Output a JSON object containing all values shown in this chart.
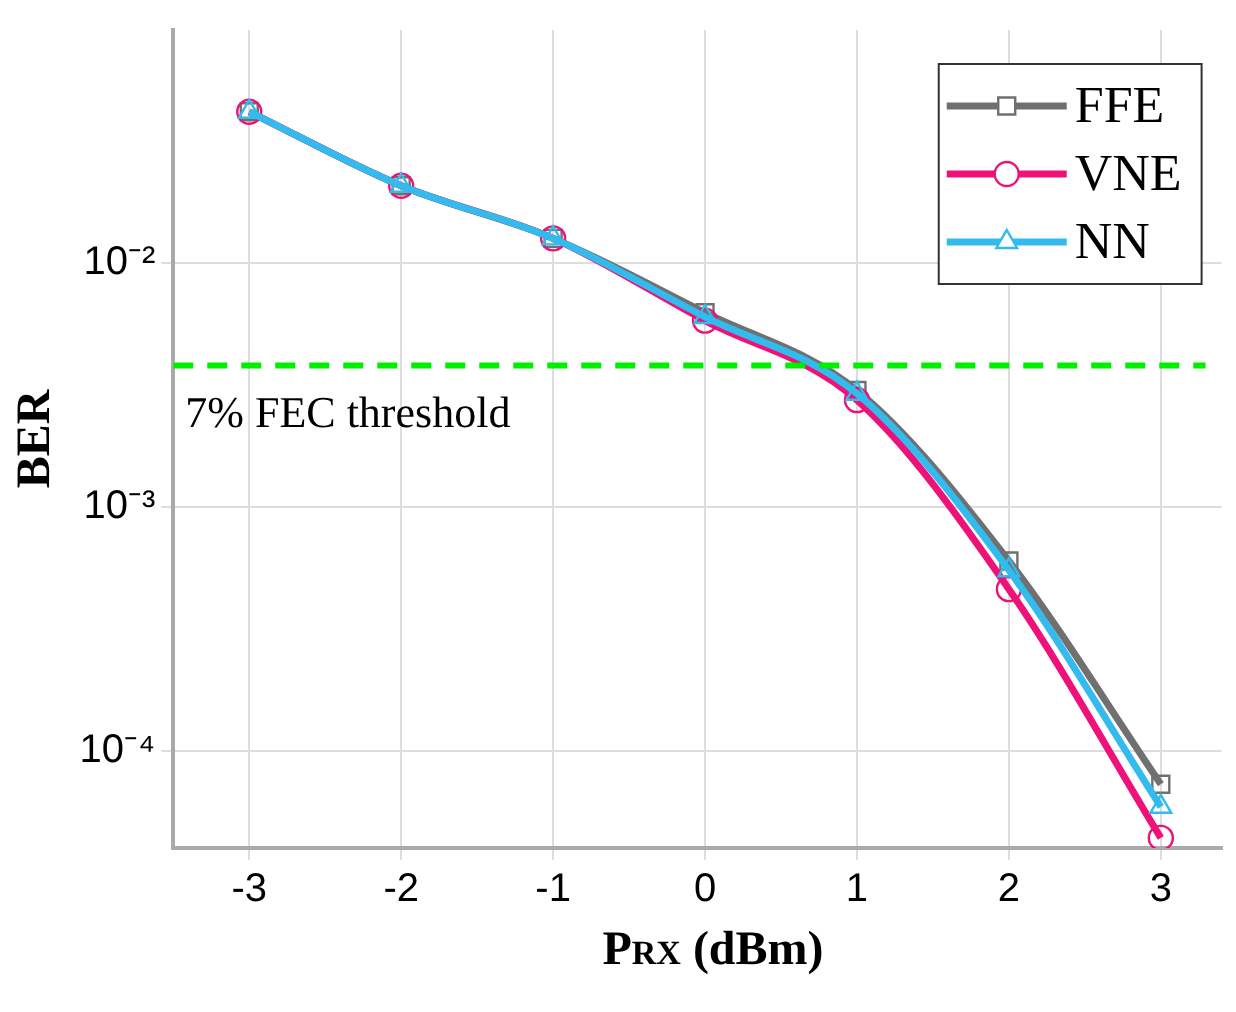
{
  "chart_data": {
    "type": "line",
    "xlabel": "P$_{RX}$ (dBm)",
    "ylabel": "BER",
    "x": [
      -3,
      -2,
      -1,
      0,
      1,
      2,
      3
    ],
    "series": [
      {
        "name": "FFE",
        "color": "#707070",
        "marker": "square",
        "values": [
          0.0416,
          0.0207,
          0.0126,
          0.00625,
          0.003,
          0.0006,
          7.3e-05
        ]
      },
      {
        "name": "VNE",
        "color": "#ee1177",
        "marker": "circle",
        "values": [
          0.0416,
          0.0207,
          0.0126,
          0.0058,
          0.00274,
          0.00046,
          4.4e-05
        ]
      },
      {
        "name": "NN",
        "color": "#33bbee",
        "marker": "triangle",
        "values": [
          0.0416,
          0.0207,
          0.0126,
          0.006,
          0.00291,
          0.00055,
          5.9e-05
        ]
      }
    ],
    "xlim": [
      -3.5,
      3.4
    ],
    "xticks": [
      -3,
      -2,
      -1,
      0,
      1,
      2,
      3
    ],
    "ylim": [
      4e-05,
      0.09
    ],
    "yticks": [
      {
        "value": 0.01,
        "label": "10⁻²"
      },
      {
        "value": 0.001,
        "label": "10⁻³"
      },
      {
        "value": 0.0001,
        "label": "10⁻⁴"
      }
    ],
    "log": "y",
    "grid": true,
    "legend": "top right",
    "line_style": "solid",
    "ref_lines": [
      {
        "axis": "y",
        "value": 0.0038,
        "label": "7% FEC threshold",
        "color": "#00ee00",
        "line_style": "dashed"
      }
    ]
  }
}
